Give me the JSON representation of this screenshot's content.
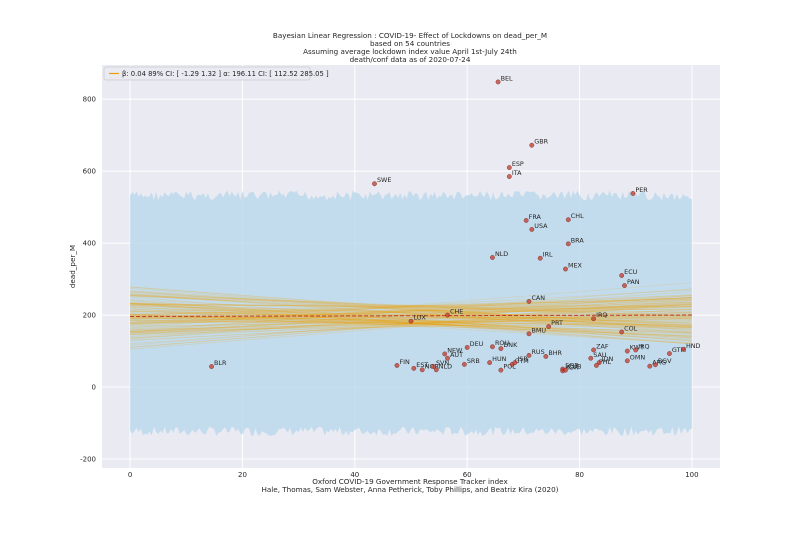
{
  "chart_data": {
    "type": "scatter",
    "title_lines": [
      "Bayesian Linear Regression : COVID-19- Effect of Lockdowns on dead_per_M",
      "based on 54 countries",
      "Assuming average lockdown index value April 1st-July 24th",
      "death/conf data as of 2020-07-24"
    ],
    "xlabel_lines": [
      "Oxford COVID-19 Government Response Tracker index",
      "Hale, Thomas, Sam Webster, Anna Petherick, Toby Phillips, and Beatriz Kira (2020)"
    ],
    "ylabel": "dead_per_M",
    "xlim": [
      -5,
      105
    ],
    "ylim": [
      -225,
      895
    ],
    "xticks": [
      0,
      20,
      40,
      60,
      80,
      100
    ],
    "yticks": [
      -200,
      0,
      200,
      400,
      600,
      800
    ],
    "grid": true,
    "legend": {
      "placement": "top-left",
      "text": "β: 0.04 89% CI: [ -1.29 1.32 ] α: 196.11 CI: [ 112.52 285.05 ]"
    },
    "regression": {
      "alpha": 196.11,
      "beta": 0.04,
      "alpha_ci": [
        112.52,
        285.05
      ],
      "beta_ci": [
        -1.29,
        1.32
      ]
    },
    "prediction_band": [
      -130,
      540
    ],
    "colors": {
      "points": "#c0392b",
      "lines": "#f0a000",
      "mean_line": "#c0392b",
      "band": "#bcd9ec",
      "background": "#eaeaf2"
    },
    "points": [
      {
        "label": "BLR",
        "x": 14.5,
        "y": 57
      },
      {
        "label": "SWE",
        "x": 43.5,
        "y": 565
      },
      {
        "label": "LUX",
        "x": 50,
        "y": 183
      },
      {
        "label": "FIN",
        "x": 47.5,
        "y": 60
      },
      {
        "label": "EST",
        "x": 50.5,
        "y": 52
      },
      {
        "label": "NOR",
        "x": 52,
        "y": 48
      },
      {
        "label": "SVN",
        "x": 54,
        "y": 57
      },
      {
        "label": "NLD",
        "x": 54.5,
        "y": 48
      },
      {
        "label": "NEW",
        "x": 56,
        "y": 92
      },
      {
        "label": "AUT",
        "x": 56.5,
        "y": 80
      },
      {
        "label": "CHE",
        "x": 56.5,
        "y": 200
      },
      {
        "label": "DEU",
        "x": 60,
        "y": 110
      },
      {
        "label": "SRB",
        "x": 59.5,
        "y": 63
      },
      {
        "label": "HUN",
        "x": 64,
        "y": 68
      },
      {
        "label": "NLD",
        "x": 64.5,
        "y": 360
      },
      {
        "label": "BEL",
        "x": 65.5,
        "y": 848
      },
      {
        "label": "ESP",
        "x": 67.5,
        "y": 610
      },
      {
        "label": "ITA",
        "x": 67.5,
        "y": 585
      },
      {
        "label": "GBR",
        "x": 71.5,
        "y": 672
      },
      {
        "label": "FRA",
        "x": 70.5,
        "y": 463
      },
      {
        "label": "USA",
        "x": 71.5,
        "y": 438
      },
      {
        "label": "IRL",
        "x": 73,
        "y": 358
      },
      {
        "label": "CAN",
        "x": 71,
        "y": 238
      },
      {
        "label": "ROU",
        "x": 64.5,
        "y": 112
      },
      {
        "label": "DNK",
        "x": 66,
        "y": 107
      },
      {
        "label": "POL",
        "x": 66,
        "y": 47
      },
      {
        "label": "GTM",
        "x": 68,
        "y": 63
      },
      {
        "label": "ISR",
        "x": 68.5,
        "y": 68
      },
      {
        "label": "RUS",
        "x": 71,
        "y": 88
      },
      {
        "label": "BHR",
        "x": 74,
        "y": 85
      },
      {
        "label": "BMU",
        "x": 71,
        "y": 148
      },
      {
        "label": "PRT",
        "x": 74.5,
        "y": 168
      },
      {
        "label": "CHL",
        "x": 78,
        "y": 465
      },
      {
        "label": "BRA",
        "x": 78,
        "y": 398
      },
      {
        "label": "MEX",
        "x": 77.5,
        "y": 328
      },
      {
        "label": "SGP",
        "x": 77,
        "y": 50
      },
      {
        "label": "KOR",
        "x": 77,
        "y": 45
      },
      {
        "label": "CUB",
        "x": 77.5,
        "y": 47
      },
      {
        "label": "ZAF",
        "x": 82.5,
        "y": 103
      },
      {
        "label": "IRQ",
        "x": 82.5,
        "y": 190
      },
      {
        "label": "SAU",
        "x": 82,
        "y": 80
      },
      {
        "label": "PHL",
        "x": 83,
        "y": 60
      },
      {
        "label": "IDN",
        "x": 83.5,
        "y": 68
      },
      {
        "label": "ECU",
        "x": 87.5,
        "y": 310
      },
      {
        "label": "PAN",
        "x": 88,
        "y": 282
      },
      {
        "label": "PER",
        "x": 89.5,
        "y": 538
      },
      {
        "label": "COL",
        "x": 87.5,
        "y": 153
      },
      {
        "label": "KWT",
        "x": 88.5,
        "y": 100
      },
      {
        "label": "IRQ",
        "x": 90,
        "y": 103
      },
      {
        "label": "OMN",
        "x": 88.5,
        "y": 73
      },
      {
        "label": "ARG",
        "x": 92.5,
        "y": 58
      },
      {
        "label": "BGV",
        "x": 93.5,
        "y": 62
      },
      {
        "label": "GTM",
        "x": 96,
        "y": 93
      },
      {
        "label": "HND",
        "x": 98.5,
        "y": 105
      }
    ]
  }
}
